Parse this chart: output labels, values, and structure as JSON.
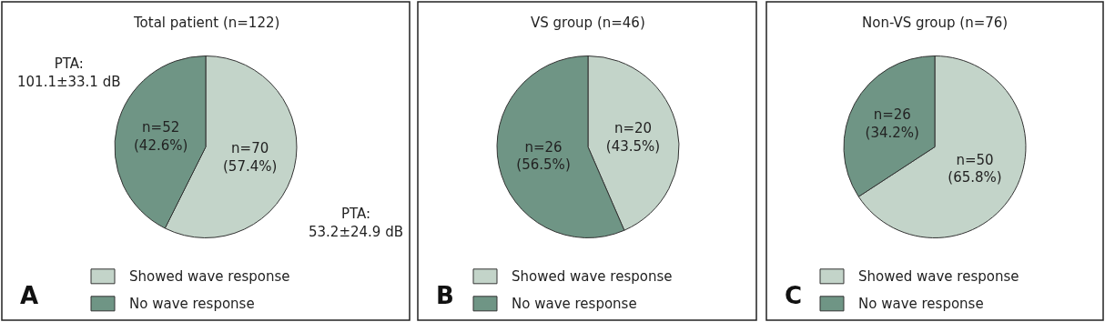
{
  "chart_data": [
    {
      "type": "pie",
      "title": "Total patient (n=122)",
      "categories": [
        "Showed wave response",
        "No wave response"
      ],
      "values": [
        70,
        52
      ],
      "colors": [
        "#c3d4c9",
        "#6f9585"
      ],
      "value_labels": [
        "n=70\n(57.4%)",
        "n=52\n(42.6%)"
      ],
      "legend": "bottom",
      "annotations": [
        "PTA:\n101.1±33.1 dB",
        "PTA:\n53.2±24.9 dB",
        "A"
      ]
    },
    {
      "type": "pie",
      "title": "VS group (n=46)",
      "categories": [
        "Showed wave response",
        "No wave response"
      ],
      "values": [
        20,
        26
      ],
      "colors": [
        "#c3d4c9",
        "#6f9585"
      ],
      "value_labels": [
        "n=20\n(43.5%)",
        "n=26\n(56.5%)"
      ],
      "legend": "bottom",
      "annotations": [
        "B"
      ]
    },
    {
      "type": "pie",
      "title": "Non-VS group (n=76)",
      "categories": [
        "Showed wave response",
        "No wave response"
      ],
      "values": [
        50,
        26
      ],
      "colors": [
        "#c3d4c9",
        "#6f9585"
      ],
      "value_labels": [
        "n=50\n(65.8%)",
        "n=26\n(34.2%)"
      ],
      "legend": "bottom",
      "annotations": [
        "C"
      ]
    }
  ]
}
